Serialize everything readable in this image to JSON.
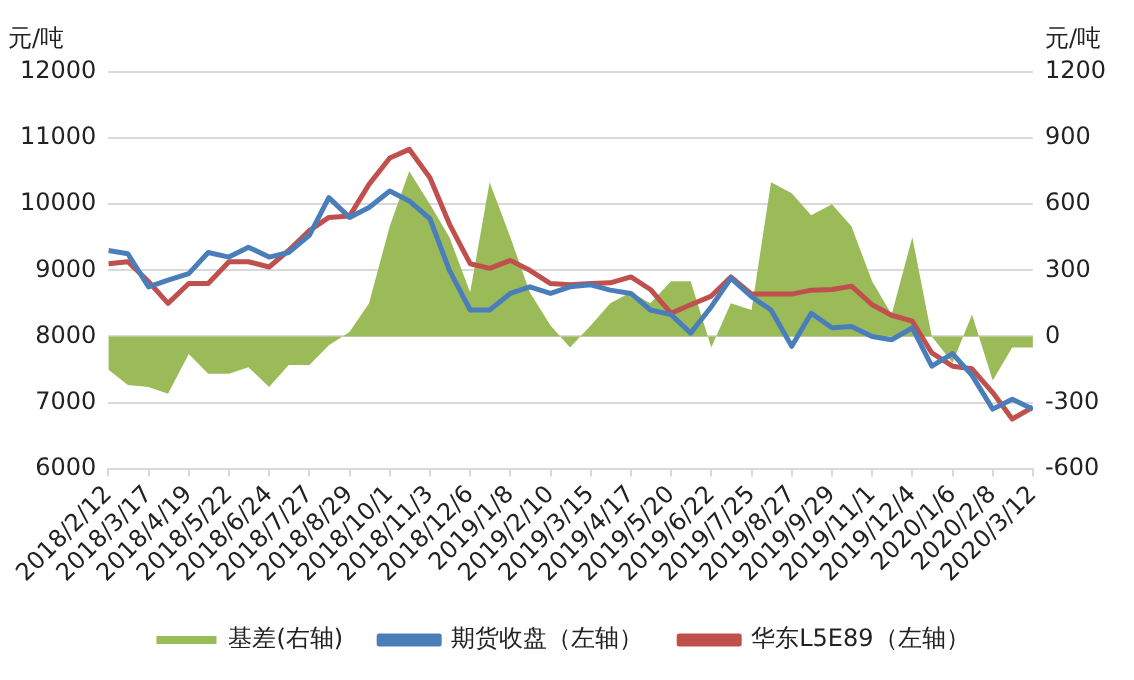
{
  "chart_data": {
    "type": "line",
    "ylabel": "元/吨",
    "y2label": "元/吨",
    "x": [
      "2018-02-12",
      "2018-02-28",
      "2018-03-17",
      "2018-04-02",
      "2018-04-19",
      "2018-05-05",
      "2018-05-22",
      "2018-06-07",
      "2018-06-24",
      "2018-07-10",
      "2018-07-27",
      "2018-08-12",
      "2018-08-29",
      "2018-09-14",
      "2018-10-01",
      "2018-10-17",
      "2018-11-03",
      "2018-11-19",
      "2018-12-06",
      "2018-12-22",
      "2019-01-08",
      "2019-01-24",
      "2019-02-10",
      "2019-02-26",
      "2019-03-15",
      "2019-03-31",
      "2019-04-17",
      "2019-05-03",
      "2019-05-20",
      "2019-06-05",
      "2019-06-22",
      "2019-07-08",
      "2019-07-25",
      "2019-08-10",
      "2019-08-27",
      "2019-09-12",
      "2019-09-29",
      "2019-10-15",
      "2019-11-01",
      "2019-11-17",
      "2019-12-04",
      "2019-12-20",
      "2020-01-06",
      "2020-01-22",
      "2020-02-08",
      "2020-02-24",
      "2020-03-12"
    ],
    "series": [
      {
        "name": "基差(右轴)",
        "type": "area",
        "axis": "y2",
        "color": "#9bbb59",
        "values": [
          -150,
          -220,
          -230,
          -260,
          -80,
          -170,
          -170,
          -140,
          -230,
          -130,
          -130,
          -40,
          20,
          150,
          500,
          750,
          600,
          450,
          200,
          700,
          450,
          200,
          50,
          -50,
          50,
          150,
          200,
          150,
          250,
          250,
          -50,
          150,
          120,
          700,
          650,
          550,
          600,
          500,
          250,
          100,
          450,
          0,
          -120,
          100,
          -200,
          -50,
          -50
        ]
      },
      {
        "name": "期货收盘（左轴）",
        "color": "#4a7ebb",
        "values": [
          9300,
          9250,
          8750,
          8850,
          8950,
          9270,
          9200,
          9350,
          9200,
          9270,
          9530,
          10100,
          9800,
          9950,
          10200,
          10050,
          9780,
          9000,
          8400,
          8400,
          8650,
          8750,
          8650,
          8750,
          8780,
          8700,
          8650,
          8400,
          8330,
          8050,
          8450,
          8880,
          8600,
          8400,
          7850,
          8350,
          8130,
          8150,
          8000,
          7950,
          8130,
          7550,
          7740,
          7410,
          6900,
          7050,
          6900
        ]
      },
      {
        "name": "华东L5E89（左轴）",
        "color": "#c0504d",
        "values": [
          9100,
          9130,
          8830,
          8500,
          8800,
          8800,
          9130,
          9130,
          9050,
          9300,
          9600,
          9800,
          9820,
          10300,
          10700,
          10830,
          10400,
          9700,
          9100,
          9030,
          9150,
          9000,
          8800,
          8780,
          8800,
          8810,
          8900,
          8710,
          8350,
          8480,
          8610,
          8900,
          8640,
          8640,
          8640,
          8700,
          8710,
          8760,
          8480,
          8320,
          8230,
          7750,
          7550,
          7510,
          7150,
          6750,
          6930
        ]
      }
    ],
    "xlim": [
      "2018-02-12",
      "2020-03-12"
    ],
    "xticks": [
      {
        "value": "2018-02-12",
        "label": "2018/2/12"
      },
      {
        "value": "2018-03-17",
        "label": "2018/3/17"
      },
      {
        "value": "2018-04-19",
        "label": "2018/4/19"
      },
      {
        "value": "2018-05-22",
        "label": "2018/5/22"
      },
      {
        "value": "2018-06-24",
        "label": "2018/6/24"
      },
      {
        "value": "2018-07-27",
        "label": "2018/7/27"
      },
      {
        "value": "2018-08-29",
        "label": "2018/8/29"
      },
      {
        "value": "2018-10-01",
        "label": "2018/10/1"
      },
      {
        "value": "2018-11-03",
        "label": "2018/11/3"
      },
      {
        "value": "2018-12-06",
        "label": "2018/12/6"
      },
      {
        "value": "2019-01-08",
        "label": "2019/1/8"
      },
      {
        "value": "2019-02-10",
        "label": "2019/2/10"
      },
      {
        "value": "2019-03-15",
        "label": "2019/3/15"
      },
      {
        "value": "2019-04-17",
        "label": "2019/4/17"
      },
      {
        "value": "2019-05-20",
        "label": "2019/5/20"
      },
      {
        "value": "2019-06-22",
        "label": "2019/6/22"
      },
      {
        "value": "2019-07-25",
        "label": "2019/7/25"
      },
      {
        "value": "2019-08-27",
        "label": "2019/8/27"
      },
      {
        "value": "2019-09-29",
        "label": "2019/9/29"
      },
      {
        "value": "2019-11-01",
        "label": "2019/11/1"
      },
      {
        "value": "2019-12-04",
        "label": "2019/12/4"
      },
      {
        "value": "2020-01-06",
        "label": "2020/1/6"
      },
      {
        "value": "2020-02-08",
        "label": "2020/2/8"
      },
      {
        "value": "2020-03-12",
        "label": "2020/3/12"
      }
    ],
    "ylim": [
      6000,
      12000
    ],
    "yticks": [
      6000,
      7000,
      8000,
      9000,
      10000,
      11000,
      12000
    ],
    "y2lim": [
      -600,
      1200
    ],
    "y2ticks": [
      -600,
      -300,
      0,
      300,
      600,
      900,
      1200
    ],
    "grid": "y",
    "legend": "bottom",
    "marker": "none",
    "line_style": "solid"
  }
}
